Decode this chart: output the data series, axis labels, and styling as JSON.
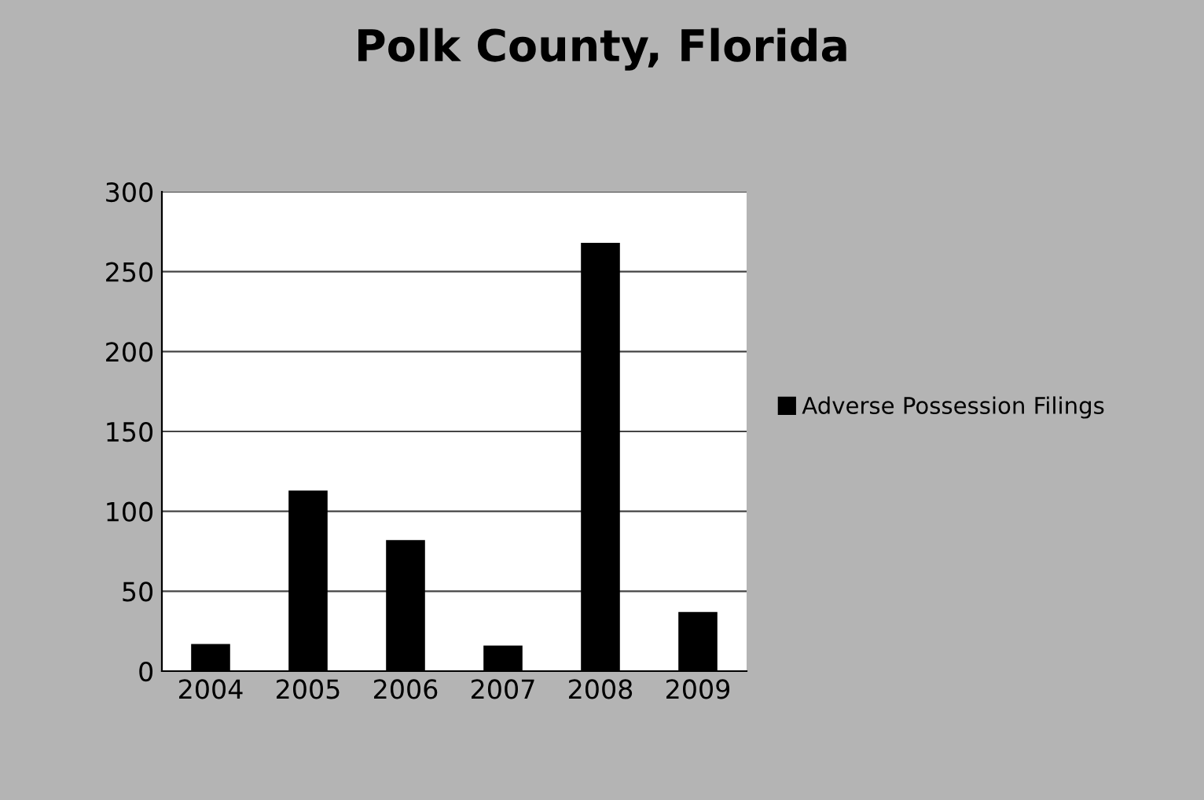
{
  "chart_data": {
    "type": "bar",
    "title": "Polk County, Florida",
    "categories": [
      "2004",
      "2005",
      "2006",
      "2007",
      "2008",
      "2009"
    ],
    "series": [
      {
        "name": "Adverse Possession Filings",
        "color": "#000000",
        "values": [
          17,
          113,
          82,
          16,
          268,
          37
        ]
      }
    ],
    "ylim": [
      0,
      300
    ],
    "yticks": [
      0,
      50,
      100,
      150,
      200,
      250,
      300
    ],
    "grid": "y",
    "legend": "right"
  }
}
